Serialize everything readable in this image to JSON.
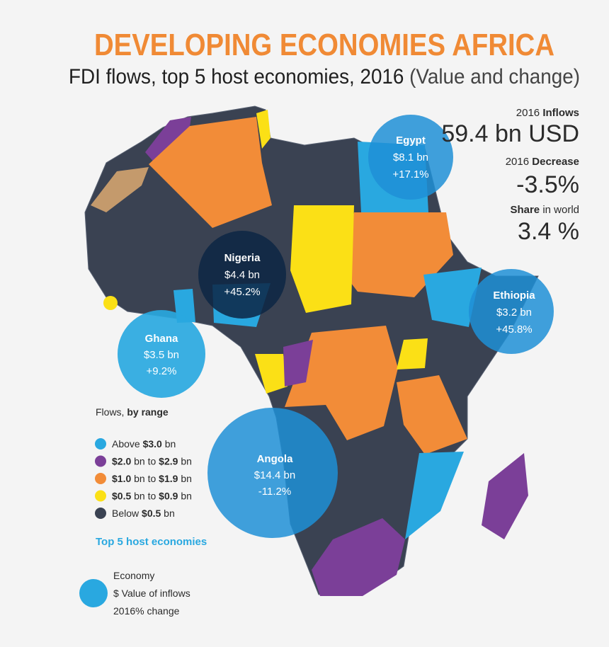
{
  "header": {
    "title": "DEVELOPING ECONOMIES AFRICA",
    "subtitle": "FDI flows, top 5 host economies, 2016",
    "subtitle_note": "(Value and change)"
  },
  "stats": {
    "inflows": {
      "year": "2016",
      "label": "Inflows",
      "value": "59.4 bn USD"
    },
    "change": {
      "year": "2016",
      "label": "Decrease",
      "value": "-3.5%"
    },
    "share": {
      "label": "Share",
      "suffix": "in world",
      "value": "3.4 %"
    }
  },
  "bubbles": [
    {
      "name": "Egypt",
      "value": "$8.1 bn",
      "change": "+17.1%"
    },
    {
      "name": "Nigeria",
      "value": "$4.4 bn",
      "change": "+45.2%"
    },
    {
      "name": "Ethiopia",
      "value": "$3.2 bn",
      "change": "+45.8%"
    },
    {
      "name": "Ghana",
      "value": "$3.5 bn",
      "change": "+9.2%"
    },
    {
      "name": "Angola",
      "value": "$14.4 bn",
      "change": "-11.2%"
    }
  ],
  "legend": {
    "title": "Flows,",
    "title_bold": "by range",
    "items": [
      {
        "color": "#29a8e0",
        "parts": [
          "Above",
          "$3.0",
          "bn"
        ]
      },
      {
        "color": "#7b3f98",
        "parts": [
          "$2.0",
          "bn to",
          "$2.9",
          "bn"
        ]
      },
      {
        "color": "#f28c38",
        "parts": [
          "$1.0",
          "bn to",
          "$1.9",
          "bn"
        ]
      },
      {
        "color": "#fbe016",
        "parts": [
          "$0.5",
          "bn to",
          "$0.9",
          "bn"
        ]
      },
      {
        "color": "#3a4252",
        "parts": [
          "Below",
          "$0.5",
          "bn"
        ]
      }
    ]
  },
  "top5_label": "Top 5 host economies",
  "key": {
    "line1": "Economy",
    "line2": "$ Value of inflows",
    "line3": "2016% change"
  }
}
